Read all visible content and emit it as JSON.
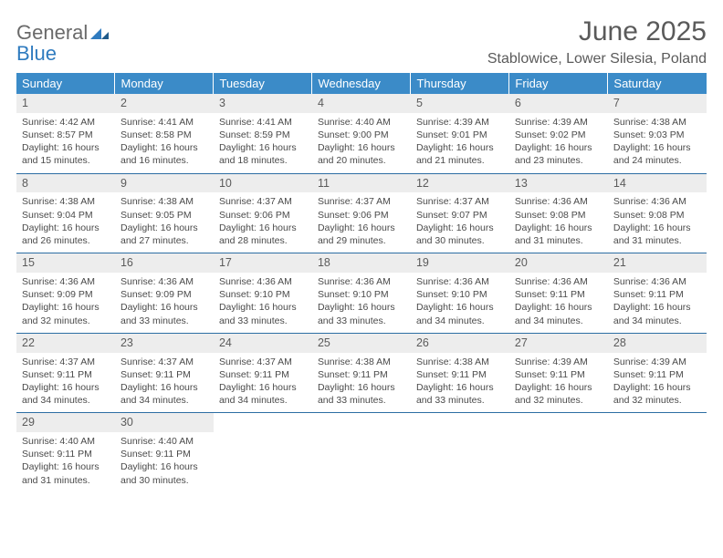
{
  "brand": {
    "line1": "General",
    "line2": "Blue"
  },
  "title": "June 2025",
  "location": "Stablowice, Lower Silesia, Poland",
  "colors": {
    "header_bg": "#3b8bc8",
    "rule": "#2d6ea3",
    "daynum_bg": "#ededed"
  },
  "day_headers": [
    "Sunday",
    "Monday",
    "Tuesday",
    "Wednesday",
    "Thursday",
    "Friday",
    "Saturday"
  ],
  "weeks": [
    [
      {
        "n": "1",
        "sr": "4:42 AM",
        "ss": "8:57 PM",
        "dl": "16 hours and 15 minutes."
      },
      {
        "n": "2",
        "sr": "4:41 AM",
        "ss": "8:58 PM",
        "dl": "16 hours and 16 minutes."
      },
      {
        "n": "3",
        "sr": "4:41 AM",
        "ss": "8:59 PM",
        "dl": "16 hours and 18 minutes."
      },
      {
        "n": "4",
        "sr": "4:40 AM",
        "ss": "9:00 PM",
        "dl": "16 hours and 20 minutes."
      },
      {
        "n": "5",
        "sr": "4:39 AM",
        "ss": "9:01 PM",
        "dl": "16 hours and 21 minutes."
      },
      {
        "n": "6",
        "sr": "4:39 AM",
        "ss": "9:02 PM",
        "dl": "16 hours and 23 minutes."
      },
      {
        "n": "7",
        "sr": "4:38 AM",
        "ss": "9:03 PM",
        "dl": "16 hours and 24 minutes."
      }
    ],
    [
      {
        "n": "8",
        "sr": "4:38 AM",
        "ss": "9:04 PM",
        "dl": "16 hours and 26 minutes."
      },
      {
        "n": "9",
        "sr": "4:38 AM",
        "ss": "9:05 PM",
        "dl": "16 hours and 27 minutes."
      },
      {
        "n": "10",
        "sr": "4:37 AM",
        "ss": "9:06 PM",
        "dl": "16 hours and 28 minutes."
      },
      {
        "n": "11",
        "sr": "4:37 AM",
        "ss": "9:06 PM",
        "dl": "16 hours and 29 minutes."
      },
      {
        "n": "12",
        "sr": "4:37 AM",
        "ss": "9:07 PM",
        "dl": "16 hours and 30 minutes."
      },
      {
        "n": "13",
        "sr": "4:36 AM",
        "ss": "9:08 PM",
        "dl": "16 hours and 31 minutes."
      },
      {
        "n": "14",
        "sr": "4:36 AM",
        "ss": "9:08 PM",
        "dl": "16 hours and 31 minutes."
      }
    ],
    [
      {
        "n": "15",
        "sr": "4:36 AM",
        "ss": "9:09 PM",
        "dl": "16 hours and 32 minutes."
      },
      {
        "n": "16",
        "sr": "4:36 AM",
        "ss": "9:09 PM",
        "dl": "16 hours and 33 minutes."
      },
      {
        "n": "17",
        "sr": "4:36 AM",
        "ss": "9:10 PM",
        "dl": "16 hours and 33 minutes."
      },
      {
        "n": "18",
        "sr": "4:36 AM",
        "ss": "9:10 PM",
        "dl": "16 hours and 33 minutes."
      },
      {
        "n": "19",
        "sr": "4:36 AM",
        "ss": "9:10 PM",
        "dl": "16 hours and 34 minutes."
      },
      {
        "n": "20",
        "sr": "4:36 AM",
        "ss": "9:11 PM",
        "dl": "16 hours and 34 minutes."
      },
      {
        "n": "21",
        "sr": "4:36 AM",
        "ss": "9:11 PM",
        "dl": "16 hours and 34 minutes."
      }
    ],
    [
      {
        "n": "22",
        "sr": "4:37 AM",
        "ss": "9:11 PM",
        "dl": "16 hours and 34 minutes."
      },
      {
        "n": "23",
        "sr": "4:37 AM",
        "ss": "9:11 PM",
        "dl": "16 hours and 34 minutes."
      },
      {
        "n": "24",
        "sr": "4:37 AM",
        "ss": "9:11 PM",
        "dl": "16 hours and 34 minutes."
      },
      {
        "n": "25",
        "sr": "4:38 AM",
        "ss": "9:11 PM",
        "dl": "16 hours and 33 minutes."
      },
      {
        "n": "26",
        "sr": "4:38 AM",
        "ss": "9:11 PM",
        "dl": "16 hours and 33 minutes."
      },
      {
        "n": "27",
        "sr": "4:39 AM",
        "ss": "9:11 PM",
        "dl": "16 hours and 32 minutes."
      },
      {
        "n": "28",
        "sr": "4:39 AM",
        "ss": "9:11 PM",
        "dl": "16 hours and 32 minutes."
      }
    ],
    [
      {
        "n": "29",
        "sr": "4:40 AM",
        "ss": "9:11 PM",
        "dl": "16 hours and 31 minutes."
      },
      {
        "n": "30",
        "sr": "4:40 AM",
        "ss": "9:11 PM",
        "dl": "16 hours and 30 minutes."
      },
      null,
      null,
      null,
      null,
      null
    ]
  ],
  "labels": {
    "sunrise": "Sunrise: ",
    "sunset": "Sunset: ",
    "daylight": "Daylight: "
  }
}
